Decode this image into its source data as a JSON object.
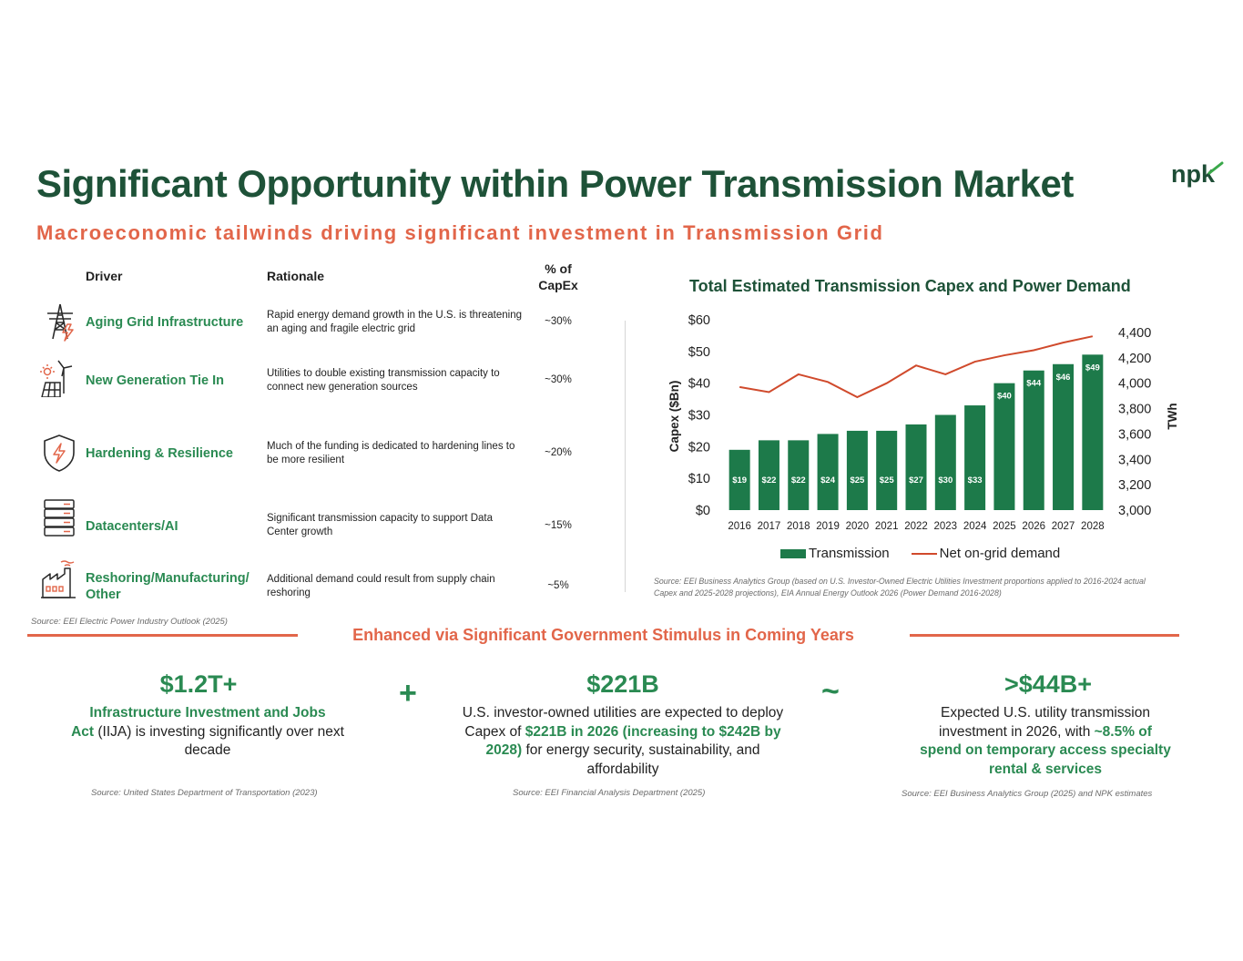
{
  "header": {
    "title": "Significant Opportunity within Power Transmission Market",
    "subtitle": "Macroeconomic tailwinds driving significant investment in Transmission Grid",
    "logo_text": "npk"
  },
  "drivers_table": {
    "headers": {
      "driver": "Driver",
      "rationale": "Rationale",
      "pct_line1": "% of",
      "pct_line2": "CapEx"
    },
    "rows": [
      {
        "icon": "transmission-tower-icon",
        "name": "Aging Grid Infrastructure",
        "rationale": "Rapid energy demand growth in the U.S. is threatening an aging and fragile electric grid",
        "pct": "~30%"
      },
      {
        "icon": "wind-solar-icon",
        "name": "New Generation Tie In",
        "rationale": "Utilities to double existing transmission capacity to connect new generation sources",
        "pct": "~30%"
      },
      {
        "icon": "shield-bolt-icon",
        "name": "Hardening & Resilience",
        "rationale": "Much of the funding is dedicated to hardening lines to be more resilient",
        "pct": "~20%"
      },
      {
        "icon": "server-rack-icon",
        "name": "Datacenters/AI",
        "rationale": "Significant transmission capacity to support Data Center growth",
        "pct": "~15%"
      },
      {
        "icon": "factory-icon",
        "name_line1": "Reshoring/Manufacturing/",
        "name_line2": "Other",
        "rationale": "Additional demand could result from supply chain reshoring",
        "pct": "~5%"
      }
    ],
    "source": "Source: EEI Electric Power Industry Outlook (2025)"
  },
  "chart_source_line1": "Source: EEI Business Analytics Group (based on U.S. Investor-Owned Electric Utilities Investment proportions applied to 2016-2024 actual",
  "chart_source_line2": "Capex and 2025-2028 projections), EIA Annual Energy Outlook 2026 (Power Demand 2016-2028)",
  "chart_data": {
    "type": "bar",
    "title": "Total Estimated Transmission Capex and Power Demand",
    "categories": [
      "2016",
      "2017",
      "2018",
      "2019",
      "2020",
      "2021",
      "2022",
      "2023",
      "2024",
      "2025",
      "2026",
      "2027",
      "2028"
    ],
    "series": [
      {
        "name": "Transmission",
        "kind": "bar",
        "axis": "left",
        "color": "#1d7a4a",
        "values": [
          19,
          22,
          22,
          24,
          25,
          25,
          27,
          30,
          33,
          40,
          44,
          46,
          49
        ],
        "labels": [
          "$19",
          "$22",
          "$22",
          "$24",
          "$25",
          "$25",
          "$27",
          "$30",
          "$33",
          "$40",
          "$44",
          "$46",
          "$49"
        ]
      },
      {
        "name": "Net on-grid demand",
        "kind": "line",
        "axis": "right",
        "color": "#d04a2c",
        "values": [
          3970,
          3930,
          4070,
          4010,
          3890,
          4000,
          4140,
          4070,
          4170,
          4220,
          4260,
          4320,
          4370
        ]
      }
    ],
    "ylabel": "Capex ($Bn)",
    "y2label": "TWh",
    "ylim": [
      0,
      60
    ],
    "y2lim": [
      3000,
      4400
    ],
    "yticks": [
      "$0",
      "$10",
      "$20",
      "$30",
      "$40",
      "$50",
      "$60"
    ],
    "y2ticks": [
      "3,000",
      "3,200",
      "3,400",
      "3,600",
      "3,800",
      "4,000",
      "4,200",
      "4,400"
    ],
    "legend": "bottom",
    "grid": false
  },
  "stimulus": {
    "title": "Enhanced via Significant Government Stimulus in Coming Years",
    "op_plus": "+",
    "op_tilde": "~",
    "stat1": {
      "value": "$1.2T+",
      "bold1": "Infrastructure Investment and Jobs",
      "bold2": "Act",
      "rest": " (IIJA) is investing significantly over next decade",
      "source": "Source: United States Department of Transportation (2023)"
    },
    "stat2": {
      "value": "$221B",
      "text1": "U.S. investor-owned utilities are expected to deploy Capex of ",
      "bold": "$221B in 2026 (increasing to $242B by 2028)",
      "text2": " for energy security, sustainability, and affordability",
      "source": "Source: EEI Financial Analysis Department (2025)"
    },
    "stat3": {
      "value": ">$44B+",
      "text1": "Expected U.S. utility transmission investment in 2026, with ",
      "bold": "~8.5% of spend on temporary access specialty rental & services",
      "source": "Source: EEI Business Analytics Group (2025) and NPK estimates"
    }
  }
}
